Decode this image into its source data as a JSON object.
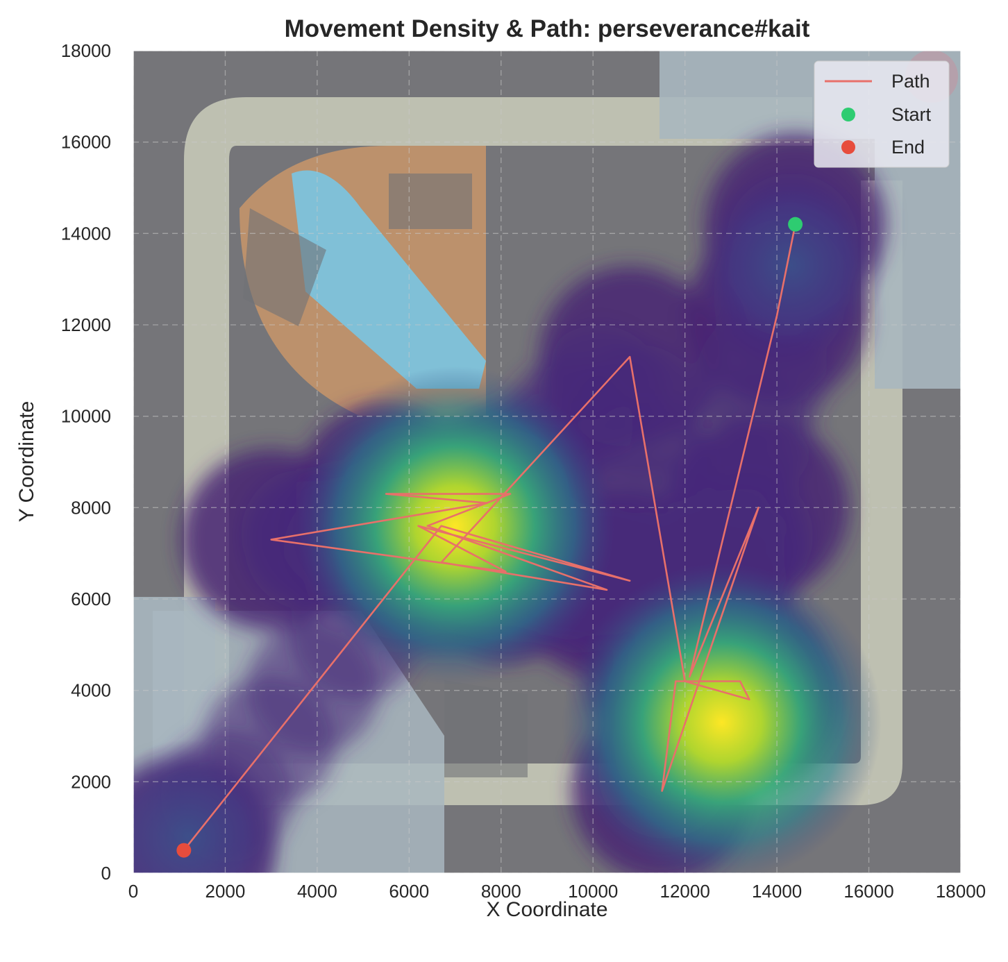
{
  "chart_data": {
    "type": "line",
    "title": "Movement Density & Path: perseverance#kait",
    "xlabel": "X Coordinate",
    "ylabel": "Y Coordinate",
    "xlim": [
      0,
      18000
    ],
    "ylim": [
      0,
      18000
    ],
    "xticks": [
      0,
      2000,
      4000,
      6000,
      8000,
      10000,
      12000,
      14000,
      16000,
      18000
    ],
    "yticks": [
      0,
      2000,
      4000,
      6000,
      8000,
      10000,
      12000,
      14000,
      16000,
      18000
    ],
    "grid": true,
    "legend_position": "top-right",
    "legend": [
      {
        "label": "Path",
        "kind": "line",
        "color": "#e8706a"
      },
      {
        "label": "Start",
        "kind": "marker",
        "color": "#2ecc71"
      },
      {
        "label": "End",
        "kind": "marker",
        "color": "#e74c3c"
      }
    ],
    "colors": {
      "path": "#e8706a",
      "start": "#2ecc71",
      "end": "#e74c3c",
      "map_background": "#757579"
    },
    "path": {
      "x": [
        14400,
        14000,
        12100,
        13600,
        11500,
        11800,
        13200,
        13400,
        12000,
        10800,
        6700,
        10300,
        6400,
        8200,
        5500,
        7700,
        3000,
        8100,
        6200,
        10800,
        6700,
        1100
      ],
      "y": [
        14200,
        12200,
        4300,
        8000,
        1800,
        4200,
        4200,
        3800,
        4200,
        11300,
        6800,
        6200,
        7600,
        8300,
        8300,
        8100,
        7300,
        6600,
        7600,
        6400,
        7600,
        500
      ]
    },
    "start_point": {
      "x": 14400,
      "y": 14200
    },
    "end_point": {
      "x": 1100,
      "y": 500
    },
    "density_hotspots": [
      {
        "x": 12800,
        "y": 3300,
        "relative_intensity": 1.0
      },
      {
        "x": 7000,
        "y": 7600,
        "relative_intensity": 0.95
      },
      {
        "x": 1200,
        "y": 800,
        "relative_intensity": 0.35
      },
      {
        "x": 14300,
        "y": 13300,
        "relative_intensity": 0.3
      }
    ],
    "colormap": "viridis"
  }
}
